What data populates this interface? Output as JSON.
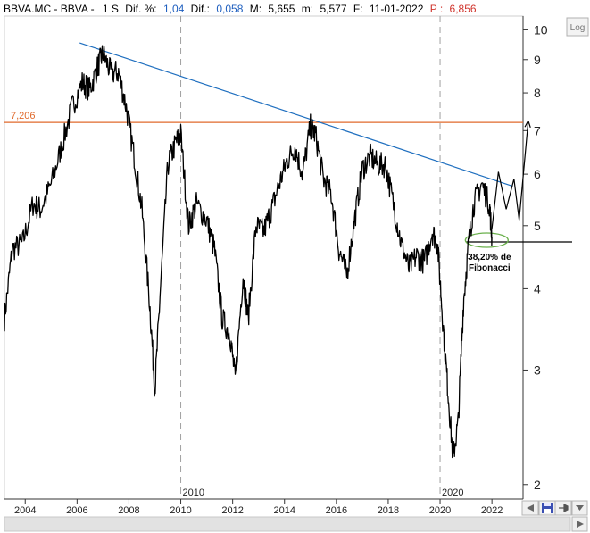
{
  "header": {
    "symbol": "BBVA.MC - BBVA -",
    "period": "1 S",
    "dif_pct_label": "Dif. %:",
    "dif_pct_value": "1,04",
    "dif_label": "Dif.:",
    "dif_value": "0,058",
    "max_label": "M:",
    "max_value": "5,655",
    "min_label": "m:",
    "min_value": "5,577",
    "date_label": "F:",
    "date_value": "11-01-2022",
    "price_label": "P :",
    "price_value": "6,856"
  },
  "controls": {
    "log_label": "Log",
    "save_icon": "floppy-disk-icon",
    "pin_icon": "pin-icon",
    "scroll_left_icon": "arrow-left-icon",
    "scroll_right_icon": "arrow-right-icon"
  },
  "colors": {
    "price": "#000000",
    "trendline": "#1f6fbf",
    "resistance": "#e06a2c",
    "fib_ellipse": "#6ab04c",
    "dif_value": "#1f5fbf",
    "price_value": "#d0342c"
  },
  "chart_data": {
    "type": "line",
    "y_scale": "log",
    "ylim": [
      1.9,
      10.5
    ],
    "xlim": [
      2003.2,
      2023.2
    ],
    "y_ticks": [
      "2",
      "3",
      "4",
      "5",
      "6",
      "7",
      "8",
      "9",
      "10"
    ],
    "y_tick_values": [
      2,
      3,
      4,
      5,
      6,
      7,
      8,
      9,
      10
    ],
    "x_ticks": [
      "2004",
      "2006",
      "2008",
      "2010",
      "2012",
      "2014",
      "2016",
      "2018",
      "2020",
      "2022"
    ],
    "x_tick_values": [
      2004,
      2006,
      2008,
      2010,
      2012,
      2014,
      2016,
      2018,
      2020,
      2022
    ],
    "x_markers": [
      {
        "label": "2010",
        "x": 2010
      },
      {
        "label": "2020",
        "x": 2020
      }
    ],
    "series": [
      {
        "x": [
          2003.2,
          2003.5,
          2003.9,
          2004.3,
          2004.6,
          2005.0,
          2005.4,
          2005.8,
          2006.2,
          2006.5,
          2006.8,
          2007.0,
          2007.3,
          2007.6,
          2007.9,
          2008.2,
          2008.5,
          2008.8,
          2009.0,
          2009.2,
          2009.5,
          2009.8,
          2010.0,
          2010.3,
          2010.6,
          2011.0,
          2011.3,
          2011.6,
          2011.9,
          2012.1,
          2012.4,
          2012.6,
          2012.9,
          2013.2,
          2013.5,
          2013.8,
          2014.1,
          2014.4,
          2014.7,
          2015.0,
          2015.2,
          2015.5,
          2015.8,
          2016.1,
          2016.4,
          2016.7,
          2017.0,
          2017.3,
          2017.6,
          2017.9,
          2018.2,
          2018.5,
          2018.8,
          2019.1,
          2019.4,
          2019.7,
          2019.9,
          2020.1,
          2020.3,
          2020.5,
          2020.7,
          2020.9,
          2021.1,
          2021.3,
          2021.6,
          2021.9,
          2022.0
        ],
        "y": [
          3.6,
          4.6,
          4.7,
          5.4,
          5.3,
          5.8,
          6.6,
          7.6,
          8.3,
          8.1,
          8.8,
          9.2,
          8.6,
          8.6,
          7.6,
          6.4,
          5.3,
          3.8,
          2.8,
          3.9,
          6.2,
          6.7,
          6.9,
          5.0,
          5.4,
          5.1,
          4.6,
          3.6,
          3.4,
          2.9,
          4.2,
          3.6,
          5.0,
          4.9,
          5.3,
          5.8,
          6.3,
          6.6,
          6.0,
          7.1,
          6.9,
          5.9,
          5.6,
          4.6,
          4.2,
          5.1,
          6.1,
          6.4,
          6.2,
          6.2,
          5.4,
          4.7,
          4.3,
          4.5,
          4.4,
          4.9,
          4.7,
          3.6,
          2.8,
          2.2,
          2.5,
          3.8,
          4.7,
          5.4,
          5.8,
          5.4,
          4.8
        ],
        "values_note": ""
      }
    ],
    "annotations": [
      {
        "type": "hline",
        "value": 7.206,
        "label": "7,206"
      },
      {
        "type": "trendline",
        "from": [
          2006.1,
          9.55
        ],
        "to": [
          2022.8,
          5.75
        ]
      },
      {
        "type": "hline",
        "value": 4.72,
        "label": "",
        "xfrom": 2021.0
      },
      {
        "type": "ellipse",
        "center": [
          2021.8,
          4.75
        ],
        "label": "38,20% de Fibonacci"
      },
      {
        "type": "projection",
        "points": [
          [
            2022.0,
            4.95
          ],
          [
            2022.25,
            6.05
          ],
          [
            2022.55,
            5.3
          ],
          [
            2022.85,
            5.9
          ],
          [
            2023.05,
            5.1
          ],
          [
            2023.4,
            7.25
          ]
        ]
      }
    ]
  }
}
